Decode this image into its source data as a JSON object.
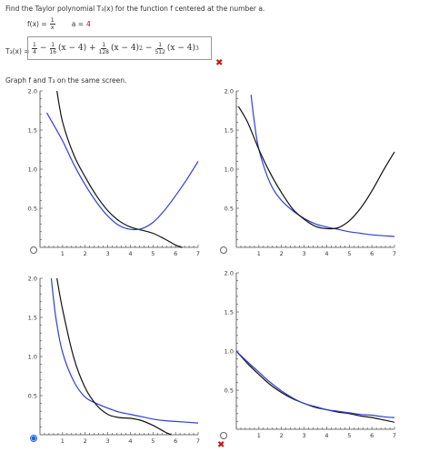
{
  "question": {
    "text": "Find the Taylor polynomial  T₃(x)  for the function f centered at the number a.",
    "f_label": "f(x) =",
    "f_num": "1",
    "f_den": "x",
    "a_label": "a =",
    "a_value": "4"
  },
  "answer": {
    "label": "T₃(x) =",
    "t1_num": "1",
    "t1_den": "4",
    "op1": "−",
    "t2_num": "1",
    "t2_den": "16",
    "t2_tail": "(x − 4) +",
    "t3_num": "1",
    "t3_den": "128",
    "t3_tail": "(x − 4)",
    "t3_exp": "2",
    "op3": "−",
    "t4_num": "1",
    "t4_den": "512",
    "t4_tail": "(x − 4)",
    "t4_exp": "3",
    "mark": "✖"
  },
  "graph_prompt": "Graph f and T₃ on the same screen.",
  "feedback_mark": "✖",
  "colors": {
    "f_curve": "#111111",
    "t_curve": "#2f3fd6",
    "incorrect": "#d01010",
    "selected": "#1e66d6"
  },
  "chart_data": [
    {
      "type": "line",
      "id": "option-1",
      "xlim": [
        0,
        7
      ],
      "ylim": [
        0,
        2
      ],
      "x_ticks": [
        "1",
        "2",
        "3",
        "4",
        "5",
        "6",
        "7"
      ],
      "y_ticks": [
        "0.5",
        "1.0",
        "1.5",
        "2.0"
      ],
      "series": [
        {
          "color": "black",
          "points": [
            [
              0.75,
              2.0
            ],
            [
              1,
              1.6
            ],
            [
              1.5,
              1.18
            ],
            [
              2,
              0.9
            ],
            [
              2.5,
              0.66
            ],
            [
              3,
              0.47
            ],
            [
              3.5,
              0.34
            ],
            [
              4,
              0.26
            ],
            [
              4.5,
              0.22
            ],
            [
              5,
              0.18
            ],
            [
              5.5,
              0.11
            ],
            [
              6,
              0.03
            ],
            [
              6.3,
              0.0
            ]
          ]
        },
        {
          "color": "blue",
          "points": [
            [
              0.3,
              1.72
            ],
            [
              1,
              1.36
            ],
            [
              1.5,
              1.06
            ],
            [
              2,
              0.8
            ],
            [
              2.5,
              0.58
            ],
            [
              3,
              0.4
            ],
            [
              3.5,
              0.28
            ],
            [
              4,
              0.23
            ],
            [
              4.5,
              0.24
            ],
            [
              5,
              0.32
            ],
            [
              5.5,
              0.47
            ],
            [
              6,
              0.66
            ],
            [
              6.5,
              0.87
            ],
            [
              7,
              1.1
            ]
          ]
        }
      ]
    },
    {
      "type": "line",
      "id": "option-2",
      "xlim": [
        0,
        7
      ],
      "ylim": [
        0,
        2
      ],
      "x_ticks": [
        "1",
        "2",
        "3",
        "4",
        "5",
        "6",
        "7"
      ],
      "y_ticks": [
        "0.5",
        "1.0",
        "1.5",
        "2.0"
      ],
      "series": [
        {
          "color": "blue",
          "points": [
            [
              0.65,
              1.95
            ],
            [
              0.8,
              1.6
            ],
            [
              1,
              1.25
            ],
            [
              1.5,
              0.82
            ],
            [
              2,
              0.6
            ],
            [
              2.5,
              0.47
            ],
            [
              3,
              0.37
            ],
            [
              3.5,
              0.3
            ],
            [
              4,
              0.26
            ],
            [
              4.5,
              0.23
            ],
            [
              5,
              0.2
            ],
            [
              5.5,
              0.18
            ],
            [
              6,
              0.16
            ],
            [
              7,
              0.14
            ]
          ]
        },
        {
          "color": "black",
          "points": [
            [
              0.1,
              1.8
            ],
            [
              0.5,
              1.6
            ],
            [
              1,
              1.25
            ],
            [
              1.5,
              0.95
            ],
            [
              2,
              0.7
            ],
            [
              2.5,
              0.49
            ],
            [
              3,
              0.36
            ],
            [
              3.5,
              0.27
            ],
            [
              4,
              0.24
            ],
            [
              4.5,
              0.25
            ],
            [
              5,
              0.34
            ],
            [
              5.5,
              0.5
            ],
            [
              6,
              0.72
            ],
            [
              6.5,
              0.98
            ],
            [
              7,
              1.22
            ]
          ]
        }
      ]
    },
    {
      "type": "line",
      "id": "option-3",
      "xlim": [
        0,
        7
      ],
      "ylim": [
        0,
        2
      ],
      "x_ticks": [
        "1",
        "2",
        "3",
        "4",
        "5",
        "6",
        "7"
      ],
      "y_ticks": [
        "0.5",
        "1.0",
        "1.5",
        "2.0"
      ],
      "series": [
        {
          "color": "blue",
          "points": [
            [
              0.5,
              2.0
            ],
            [
              0.7,
              1.5
            ],
            [
              1,
              1.05
            ],
            [
              1.5,
              0.68
            ],
            [
              2,
              0.48
            ],
            [
              2.5,
              0.4
            ],
            [
              3,
              0.34
            ],
            [
              3.5,
              0.29
            ],
            [
              4,
              0.26
            ],
            [
              4.5,
              0.23
            ],
            [
              5,
              0.2
            ],
            [
              5.5,
              0.18
            ],
            [
              6,
              0.17
            ],
            [
              7,
              0.15
            ]
          ]
        },
        {
          "color": "black",
          "points": [
            [
              0.75,
              2.0
            ],
            [
              1,
              1.6
            ],
            [
              1.5,
              0.98
            ],
            [
              2,
              0.6
            ],
            [
              2.5,
              0.38
            ],
            [
              3,
              0.26
            ],
            [
              3.5,
              0.22
            ],
            [
              4,
              0.21
            ],
            [
              4.5,
              0.18
            ],
            [
              5,
              0.12
            ],
            [
              5.5,
              0.04
            ],
            [
              5.8,
              0.0
            ]
          ]
        }
      ]
    },
    {
      "type": "line",
      "id": "option-4",
      "xlim": [
        0,
        7
      ],
      "ylim": [
        0,
        2
      ],
      "x_ticks": [
        "1",
        "2",
        "3",
        "4",
        "5",
        "6",
        "7"
      ],
      "y_ticks": [
        "0.5",
        "1.0",
        "1.5",
        "2.0"
      ],
      "series": [
        {
          "color": "black",
          "points": [
            [
              0,
              1.0
            ],
            [
              0.5,
              0.84
            ],
            [
              1,
              0.7
            ],
            [
              1.5,
              0.57
            ],
            [
              2,
              0.47
            ],
            [
              2.5,
              0.39
            ],
            [
              3,
              0.33
            ],
            [
              3.5,
              0.28
            ],
            [
              4,
              0.25
            ],
            [
              4.5,
              0.22
            ],
            [
              5,
              0.2
            ],
            [
              5.5,
              0.17
            ],
            [
              6,
              0.15
            ],
            [
              6.5,
              0.12
            ],
            [
              7,
              0.09
            ]
          ]
        },
        {
          "color": "blue",
          "points": [
            [
              0,
              1.0
            ],
            [
              0.5,
              0.86
            ],
            [
              1,
              0.73
            ],
            [
              1.5,
              0.6
            ],
            [
              2,
              0.49
            ],
            [
              2.5,
              0.4
            ],
            [
              3,
              0.33
            ],
            [
              3.5,
              0.29
            ],
            [
              4,
              0.25
            ],
            [
              4.5,
              0.23
            ],
            [
              5,
              0.21
            ],
            [
              5.5,
              0.19
            ],
            [
              6,
              0.18
            ],
            [
              6.5,
              0.16
            ],
            [
              7,
              0.15
            ]
          ]
        }
      ]
    }
  ]
}
